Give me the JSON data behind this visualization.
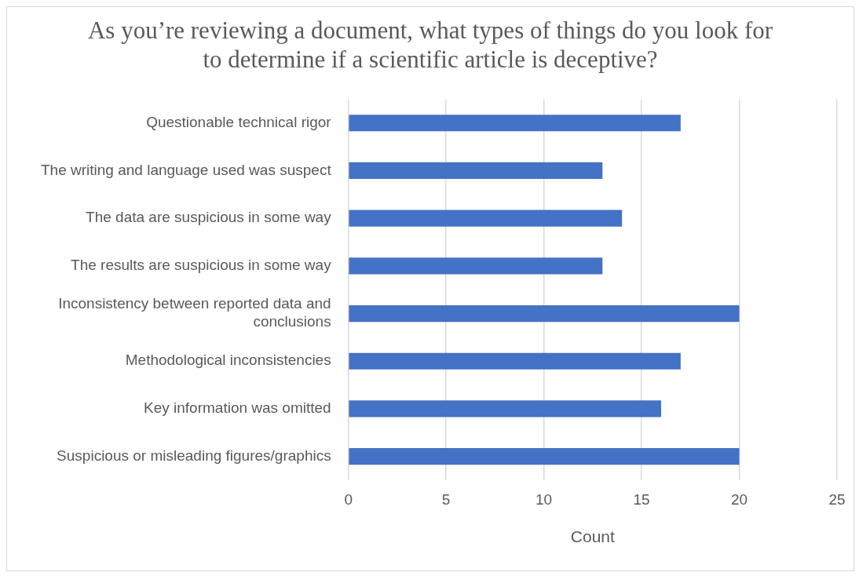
{
  "chart_data": {
    "type": "bar",
    "orientation": "horizontal",
    "title": "As you’re reviewing a document, what types of things do you look for to determine if a scientific article is deceptive?",
    "xlabel": "Count",
    "categories": [
      "Questionable technical rigor",
      "The writing and language used was suspect",
      "The data are suspicious in some way",
      "The results are suspicious in some way",
      "Inconsistency between reported data and conclusions",
      "Methodological inconsistencies",
      "Key information was omitted",
      "Suspicious or misleading figures/graphics"
    ],
    "values": [
      17,
      13,
      14,
      13,
      20,
      17,
      16,
      20
    ],
    "color": "#4472c4",
    "xlim": [
      0,
      25
    ],
    "xticks": [
      0,
      5,
      10,
      15,
      20,
      25
    ],
    "grid": "x",
    "legend": false
  }
}
